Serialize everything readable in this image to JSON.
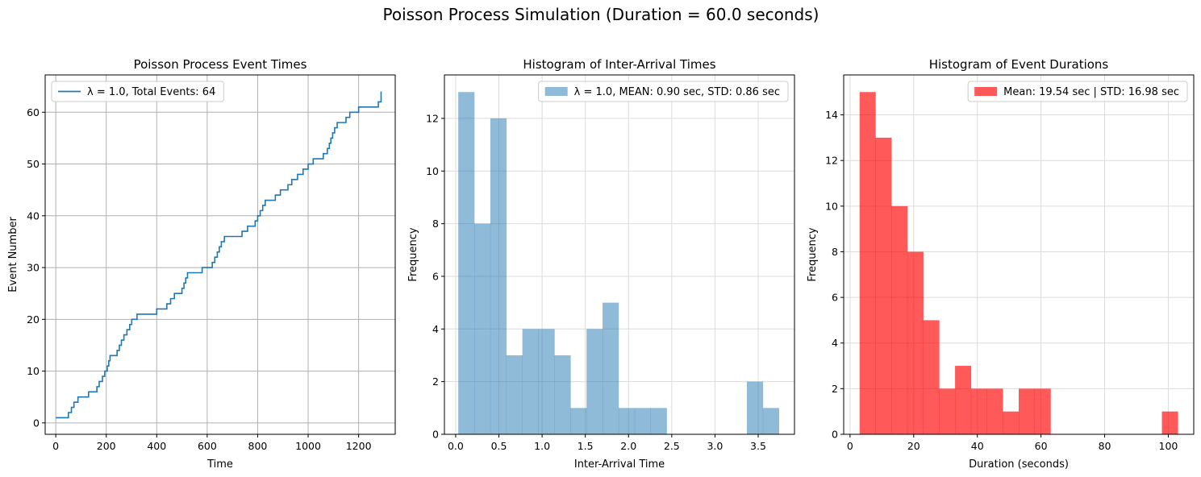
{
  "figure": {
    "suptitle": "Poisson Process Simulation (Duration = 60.0 seconds)"
  },
  "chart_data": [
    {
      "type": "line",
      "step": "post",
      "title": "Poisson Process Event Times",
      "xlabel": "Time",
      "ylabel": "Event Number",
      "xlim": [
        -42,
        1345
      ],
      "ylim": [
        -2.2,
        67.2
      ],
      "xticks": [
        0,
        200,
        400,
        600,
        800,
        1000,
        1200
      ],
      "yticks": [
        0,
        10,
        20,
        30,
        40,
        50,
        60
      ],
      "grid": true,
      "legend_position": "upper left",
      "color": "#1f77b4",
      "series": [
        {
          "name": "λ = 1.0, Total Events: 64",
          "x": [
            0,
            50,
            62,
            72,
            88,
            100,
            130,
            150,
            163,
            172,
            185,
            194,
            204,
            210,
            215,
            222,
            243,
            252,
            260,
            270,
            282,
            293,
            301,
            310,
            322,
            340,
            400,
            430,
            440,
            455,
            470,
            500,
            508,
            515,
            522,
            540,
            580,
            600,
            620,
            630,
            640,
            648,
            656,
            668,
            720,
            738,
            760,
            790,
            800,
            810,
            820,
            830,
            870,
            890,
            910,
            920,
            935,
            958,
            980,
            1000,
            1020,
            1060,
            1065,
            1076,
            1084,
            1090,
            1097,
            1105,
            1115,
            1150,
            1165,
            1200,
            1278,
            1286
          ],
          "y": [
            1,
            2,
            3,
            4,
            5,
            5,
            6,
            6,
            7,
            8,
            9,
            10,
            11,
            12,
            13,
            13,
            14,
            15,
            16,
            17,
            18,
            19,
            20,
            20,
            21,
            21,
            22,
            22,
            23,
            24,
            25,
            26,
            27,
            28,
            29,
            29,
            30,
            30,
            31,
            32,
            33,
            34,
            35,
            36,
            36,
            37,
            38,
            39,
            40,
            41,
            42,
            43,
            44,
            45,
            45,
            46,
            47,
            48,
            49,
            50,
            51,
            52,
            52,
            53,
            54,
            55,
            56,
            57,
            58,
            59,
            60,
            61,
            62,
            62
          ]
        }
      ]
    },
    {
      "type": "bar",
      "title": "Histogram of Inter-Arrival Times",
      "xlabel": "Inter-Arrival Time",
      "ylabel": "Frequency",
      "xlim": [
        -0.13,
        3.92
      ],
      "ylim": [
        0,
        13.65
      ],
      "xticks": [
        0.0,
        0.5,
        1.0,
        1.5,
        2.0,
        2.5,
        3.0,
        3.5
      ],
      "xticklabels": [
        "0.0",
        "0.5",
        "1.0",
        "1.5",
        "2.0",
        "2.5",
        "3.0",
        "3.5"
      ],
      "yticks": [
        0,
        2,
        4,
        6,
        8,
        10,
        12
      ],
      "grid": true,
      "legend_position": "upper right",
      "color": "#1f77b4",
      "alpha": 0.5,
      "bin_start": 0.03,
      "bin_width": 0.1855,
      "series": [
        {
          "name": "λ = 1.0, MEAN: 0.90 sec, STD: 0.86 sec",
          "values": [
            13,
            8,
            12,
            3,
            4,
            4,
            3,
            1,
            4,
            5,
            1,
            1,
            1,
            0,
            0,
            0,
            0,
            0,
            2,
            1
          ]
        }
      ]
    },
    {
      "type": "bar",
      "title": "Histogram of Event Durations",
      "xlabel": "Duration (seconds)",
      "ylabel": "Frequency",
      "xlim": [
        -2.0,
        108.0
      ],
      "ylim": [
        0,
        15.75
      ],
      "xticks": [
        0,
        20,
        40,
        60,
        80,
        100
      ],
      "xticklabels": [
        "0",
        "20",
        "40",
        "60",
        "80",
        "100"
      ],
      "yticks": [
        0,
        2,
        4,
        6,
        8,
        10,
        12,
        14
      ],
      "grid": true,
      "legend_position": "upper right",
      "color": "#ff0000",
      "alpha": 0.65,
      "bin_start": 3.0,
      "bin_width": 5.0,
      "series": [
        {
          "name": "Mean: 19.54 sec | STD: 16.98 sec",
          "values": [
            15,
            13,
            10,
            8,
            5,
            2,
            3,
            2,
            2,
            1,
            2,
            2,
            0,
            0,
            0,
            0,
            0,
            0,
            0,
            1
          ]
        }
      ]
    }
  ]
}
